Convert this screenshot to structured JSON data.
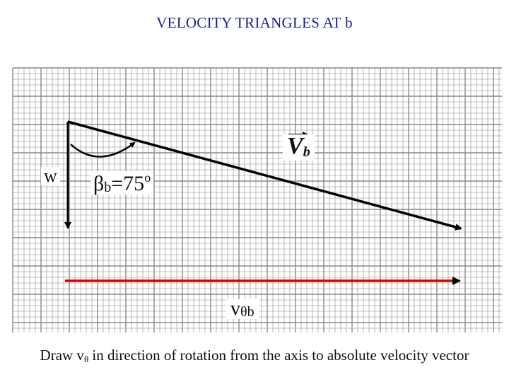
{
  "title": "VELOCITY TRIANGLES AT b",
  "labels": {
    "w": "w",
    "beta_symbol": "β",
    "beta_sub": "b",
    "beta_value": "=75",
    "beta_degree": "o",
    "vb_main": "V",
    "vb_sub": "b",
    "vtheta_main": "v",
    "vtheta_sub": "θb"
  },
  "caption": {
    "before": "Draw v",
    "sub": "θ",
    "after": " in direction of rotation from the axis to absolute velocity vector"
  },
  "colors": {
    "title": "#1a1a99",
    "grid": "#8a8a8a",
    "vector": "#000000",
    "vtheta_vector": "#e00000"
  }
}
